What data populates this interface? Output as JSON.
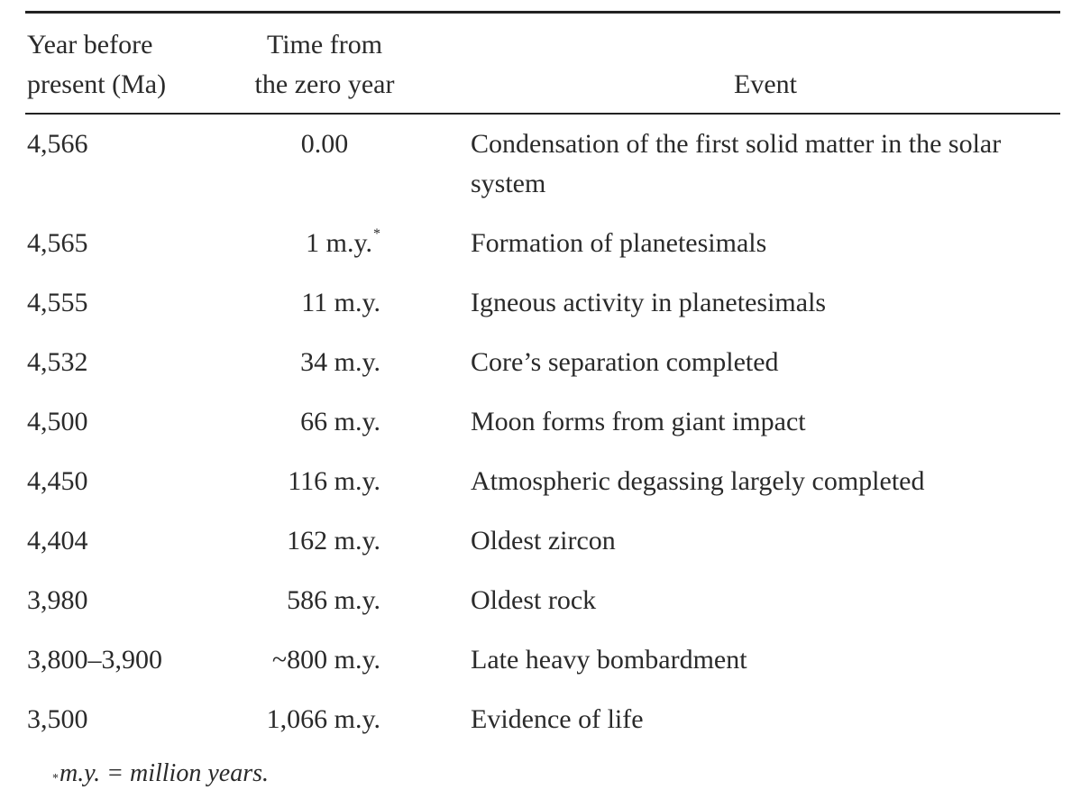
{
  "table": {
    "header": {
      "year_line1": "Year before",
      "year_line2": "present (Ma)",
      "time_line1": "Time from",
      "time_line2": "the zero year",
      "event": "Event"
    },
    "rows": [
      {
        "year": "4,566",
        "time": "0.00",
        "time_mark": "",
        "event": "Condensation of the first solid matter in the solar system"
      },
      {
        "year": "4,565",
        "time": "1 m.y.",
        "time_mark": "*",
        "event": "Formation of planetesimals"
      },
      {
        "year": "4,555",
        "time": "11 m.y.",
        "time_mark": "",
        "event": "Igneous activity in planetesimals"
      },
      {
        "year": "4,532",
        "time": "34 m.y.",
        "time_mark": "",
        "event": "Core’s separation completed"
      },
      {
        "year": "4,500",
        "time": "66 m.y.",
        "time_mark": "",
        "event": "Moon forms from giant impact"
      },
      {
        "year": "4,450",
        "time": "116 m.y.",
        "time_mark": "",
        "event": "Atmospheric degassing largely completed"
      },
      {
        "year": "4,404",
        "time": "162 m.y.",
        "time_mark": "",
        "event": "Oldest zircon"
      },
      {
        "year": "3,980",
        "time": "586 m.y.",
        "time_mark": "",
        "event": "Oldest rock"
      },
      {
        "year": "3,800–3,900",
        "time": "~800 m.y.",
        "time_mark": "",
        "event": "Late heavy bombardment"
      },
      {
        "year": "3,500",
        "time": "1,066 m.y.",
        "time_mark": "",
        "event": "Evidence of life"
      }
    ],
    "footnote": {
      "mark": "*",
      "text": "m.y. = million years."
    }
  }
}
